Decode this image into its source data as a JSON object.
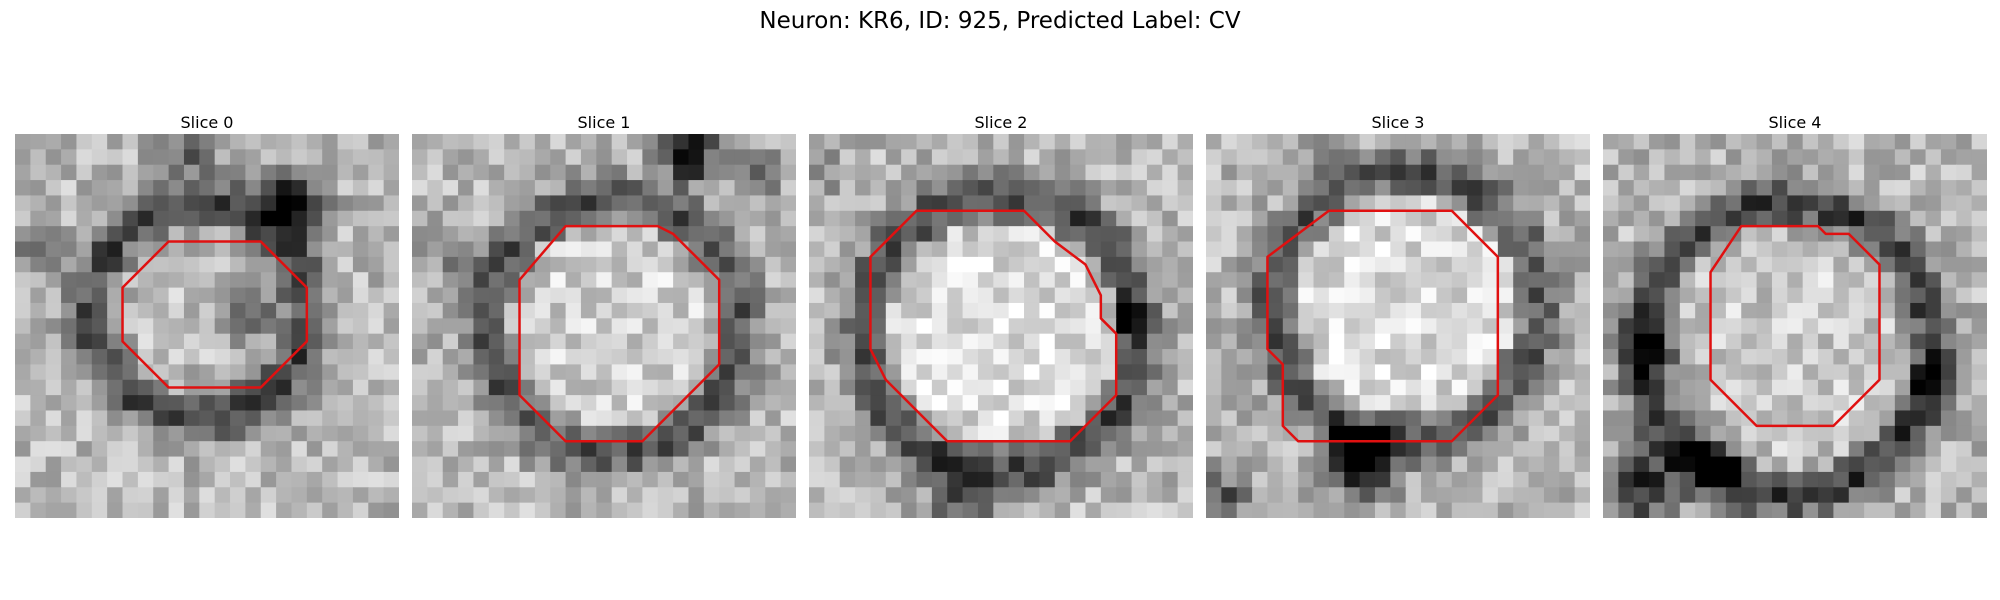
{
  "figure": {
    "title": "Neuron: KR6, ID: 925, Predicted Label: CV"
  },
  "colors": {
    "contour": "#e01010",
    "background": "#ffffff"
  },
  "panels": [
    {
      "title": "Slice 0",
      "seed": 11,
      "ring_radius": 0.28,
      "ring_center": [
        0.48,
        0.46
      ],
      "ring_darkness": 0.45,
      "inner_brightness": 0.05,
      "blobs": [
        [
          0.72,
          0.18,
          0.08,
          -0.7
        ],
        [
          0.05,
          0.3,
          0.06,
          -0.45
        ],
        [
          0.6,
          0.45,
          0.08,
          -0.35
        ],
        [
          0.45,
          0.05,
          0.08,
          -0.3
        ]
      ]
    },
    {
      "title": "Slice 1",
      "seed": 23,
      "ring_radius": 0.33,
      "ring_center": [
        0.52,
        0.5
      ],
      "ring_darkness": 0.4,
      "inner_brightness": 0.2,
      "blobs": [
        [
          0.72,
          0.05,
          0.07,
          -0.75
        ],
        [
          0.9,
          0.1,
          0.06,
          -0.35
        ],
        [
          0.1,
          0.3,
          0.06,
          -0.25
        ]
      ]
    },
    {
      "title": "Slice 2",
      "seed": 37,
      "ring_radius": 0.36,
      "ring_center": [
        0.5,
        0.52
      ],
      "ring_darkness": 0.45,
      "inner_brightness": 0.3,
      "blobs": [
        [
          0.82,
          0.48,
          0.04,
          -0.8
        ],
        [
          0.4,
          0.97,
          0.09,
          -0.35
        ],
        [
          0.05,
          0.1,
          0.06,
          -0.2
        ]
      ]
    },
    {
      "title": "Slice 3",
      "seed": 51,
      "ring_radius": 0.35,
      "ring_center": [
        0.52,
        0.45
      ],
      "ring_darkness": 0.4,
      "inner_brightness": 0.3,
      "blobs": [
        [
          0.4,
          0.85,
          0.09,
          -0.75
        ],
        [
          0.04,
          0.95,
          0.07,
          -0.4
        ],
        [
          0.3,
          0.05,
          0.07,
          -0.2
        ]
      ]
    },
    {
      "title": "Slice 4",
      "seed": 67,
      "ring_radius": 0.38,
      "ring_center": [
        0.48,
        0.56
      ],
      "ring_darkness": 0.5,
      "inner_brightness": 0.15,
      "blobs": [
        [
          0.1,
          0.92,
          0.1,
          -0.55
        ],
        [
          0.3,
          0.85,
          0.08,
          -0.45
        ],
        [
          0.15,
          0.55,
          0.07,
          -0.35
        ],
        [
          0.85,
          0.65,
          0.06,
          -0.25
        ]
      ]
    }
  ],
  "contours": [
    [
      [
        10,
        7
      ],
      [
        16,
        7
      ],
      [
        19,
        10
      ],
      [
        19,
        13.5
      ],
      [
        16,
        16.5
      ],
      [
        10,
        16.5
      ],
      [
        7,
        13.5
      ],
      [
        7,
        10
      ]
    ],
    [
      [
        10,
        6
      ],
      [
        16,
        6
      ],
      [
        17,
        6.5
      ],
      [
        18,
        7.5
      ],
      [
        20,
        9.5
      ],
      [
        20,
        15
      ],
      [
        19,
        16
      ],
      [
        17,
        18
      ],
      [
        15,
        20
      ],
      [
        10,
        20
      ],
      [
        8,
        18
      ],
      [
        7,
        17
      ],
      [
        7,
        9.5
      ]
    ],
    [
      [
        7,
        5
      ],
      [
        14,
        5
      ],
      [
        15,
        6
      ],
      [
        16,
        7
      ],
      [
        18,
        8.5
      ],
      [
        19,
        10.5
      ],
      [
        19,
        12
      ],
      [
        20,
        13
      ],
      [
        20,
        17
      ],
      [
        19,
        18
      ],
      [
        18,
        19
      ],
      [
        17,
        20
      ],
      [
        9,
        20
      ],
      [
        7,
        18
      ],
      [
        6,
        17
      ],
      [
        5,
        16
      ],
      [
        4,
        14
      ],
      [
        4,
        8
      ]
    ],
    [
      [
        8,
        5
      ],
      [
        16,
        5
      ],
      [
        19,
        8
      ],
      [
        19,
        17
      ],
      [
        16,
        20
      ],
      [
        6,
        20
      ],
      [
        5,
        19
      ],
      [
        5,
        15
      ],
      [
        4,
        14
      ],
      [
        4,
        8
      ]
    ],
    [
      [
        9,
        6
      ],
      [
        14,
        6
      ],
      [
        14.5,
        6.5
      ],
      [
        16,
        6.5
      ],
      [
        18,
        8.5
      ],
      [
        18,
        16
      ],
      [
        17,
        17
      ],
      [
        15,
        19
      ],
      [
        10,
        19
      ],
      [
        8,
        17
      ],
      [
        7,
        16
      ],
      [
        7,
        9
      ]
    ]
  ]
}
